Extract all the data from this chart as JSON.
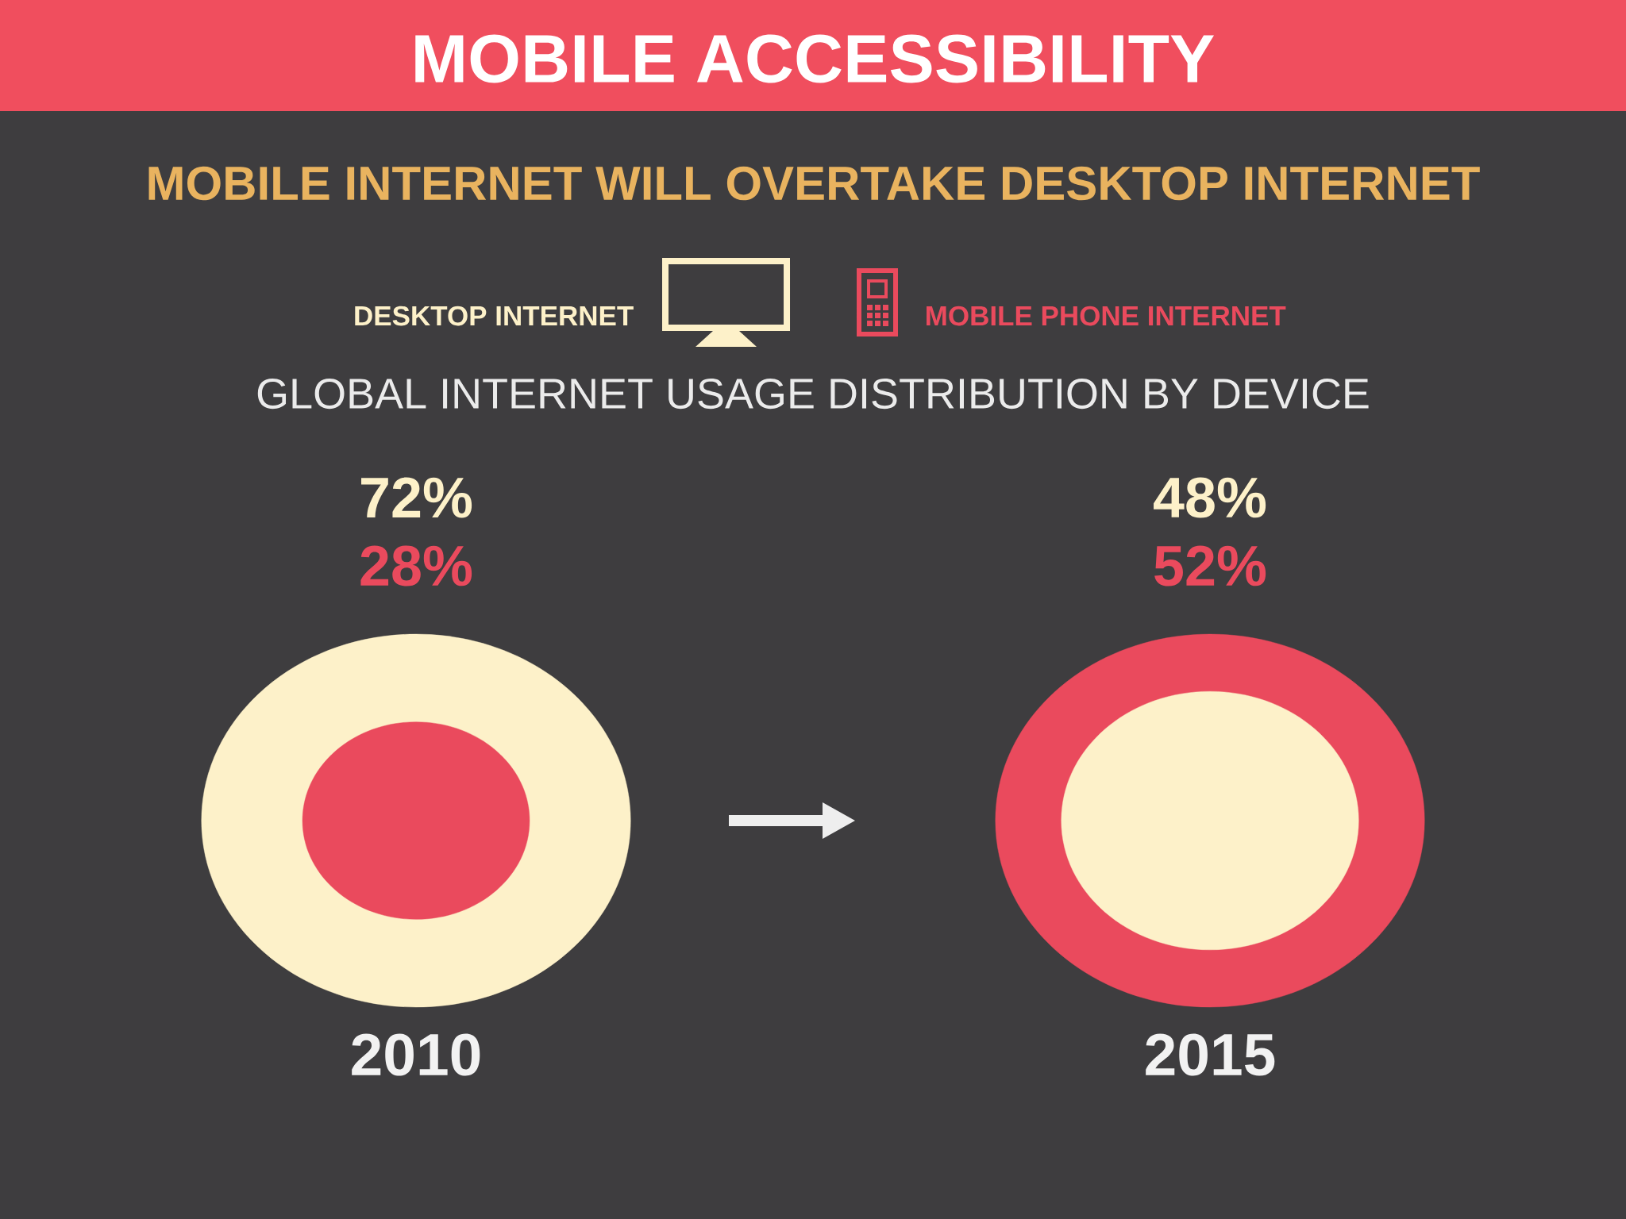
{
  "chart_data": {
    "type": "other",
    "title": "MOBILE ACCESSIBILITY",
    "subtitle": "MOBILE INTERNET WILL OVERTAKE DESKTOP INTERNET",
    "annotations": [
      "GLOBAL INTERNET USAGE DISTRIBUTION BY DEVICE"
    ],
    "categories": [
      "2010",
      "2015"
    ],
    "series": [
      {
        "name": "DESKTOP INTERNET",
        "color": "#fdf1c9",
        "values": [
          72,
          48
        ],
        "value_labels": [
          "72%",
          "48%"
        ]
      },
      {
        "name": "MOBILE PHONE INTERNET",
        "color": "#ea4a5d",
        "values": [
          28,
          52
        ],
        "value_labels": [
          "28%",
          "52%"
        ]
      }
    ],
    "legend": "top"
  }
}
